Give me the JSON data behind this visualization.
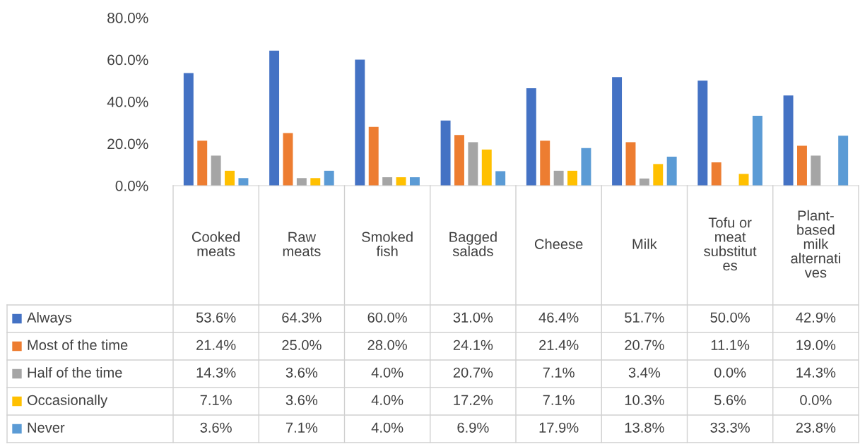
{
  "chart_data": {
    "type": "bar",
    "categories": [
      "Cooked\nmeats",
      "Raw\nmeats",
      "Smoked\nfish",
      "Bagged\nsalads",
      "Cheese",
      "Milk",
      "Tofu or\nmeat\nsubstitut\nes",
      "Plant-\nbased\nmilk\nalternati\nves"
    ],
    "series": [
      {
        "name": "Always",
        "color": "#4472c4",
        "values": [
          53.6,
          64.3,
          60.0,
          31.0,
          46.4,
          51.7,
          50.0,
          42.9
        ],
        "value_labels": [
          "53.6%",
          "64.3%",
          "60.0%",
          "31.0%",
          "46.4%",
          "51.7%",
          "50.0%",
          "42.9%"
        ]
      },
      {
        "name": "Most of the time",
        "color": "#ed7d31",
        "values": [
          21.4,
          25.0,
          28.0,
          24.1,
          21.4,
          20.7,
          11.1,
          19.0
        ],
        "value_labels": [
          "21.4%",
          "25.0%",
          "28.0%",
          "24.1%",
          "21.4%",
          "20.7%",
          "11.1%",
          "19.0%"
        ]
      },
      {
        "name": "Half of the time",
        "color": "#a5a5a5",
        "values": [
          14.3,
          3.6,
          4.0,
          20.7,
          7.1,
          3.4,
          0.0,
          14.3
        ],
        "value_labels": [
          "14.3%",
          "3.6%",
          "4.0%",
          "20.7%",
          "7.1%",
          "3.4%",
          "0.0%",
          "14.3%"
        ]
      },
      {
        "name": "Occasionally",
        "color": "#ffc000",
        "values": [
          7.1,
          3.6,
          4.0,
          17.2,
          7.1,
          10.3,
          5.6,
          0.0
        ],
        "value_labels": [
          "7.1%",
          "3.6%",
          "4.0%",
          "17.2%",
          "7.1%",
          "10.3%",
          "5.6%",
          "0.0%"
        ]
      },
      {
        "name": "Never",
        "color": "#5b9bd5",
        "values": [
          3.6,
          7.1,
          4.0,
          6.9,
          17.9,
          13.8,
          33.3,
          23.8
        ],
        "value_labels": [
          "3.6%",
          "7.1%",
          "4.0%",
          "6.9%",
          "17.9%",
          "13.8%",
          "33.3%",
          "23.8%"
        ]
      }
    ],
    "ylim": [
      0,
      80
    ],
    "yticks": [
      {
        "value": 0,
        "label": "0.0%"
      },
      {
        "value": 20,
        "label": "20.0%"
      },
      {
        "value": 40,
        "label": "40.0%"
      },
      {
        "value": 60,
        "label": "60.0%"
      },
      {
        "value": 80,
        "label": "80.0%"
      }
    ],
    "legend": "bottom",
    "grid": false
  }
}
